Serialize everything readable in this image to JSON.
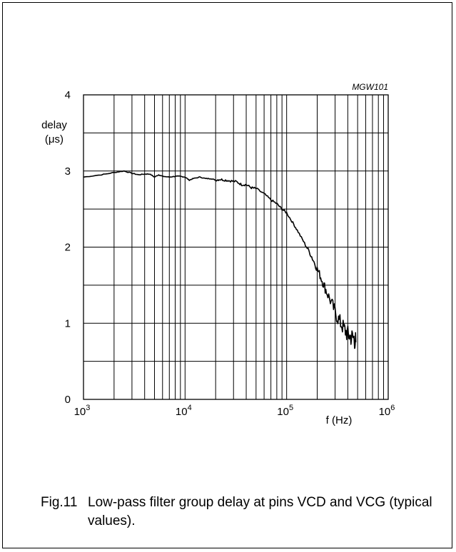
{
  "chart_data": {
    "type": "line",
    "code": "MGW101",
    "ylabel_lines": [
      "delay",
      "(μs)"
    ],
    "xlabel": "f (Hz)",
    "x_scale": "log",
    "xlim": [
      1000,
      1000000
    ],
    "ylim": [
      0,
      4
    ],
    "grid": true,
    "x_tick_labels": [
      {
        "value": 1000,
        "base": "10",
        "exp": "3"
      },
      {
        "value": 10000,
        "base": "10",
        "exp": "4"
      },
      {
        "value": 100000,
        "base": "10",
        "exp": "5"
      },
      {
        "value": 1000000,
        "base": "10",
        "exp": "6"
      }
    ],
    "y_ticks": [
      0,
      1,
      2,
      3,
      4
    ],
    "series": [
      {
        "x": [
          1000,
          1500,
          2000,
          2500,
          3000,
          3500,
          4000,
          4500,
          5000,
          5500,
          6000,
          7000,
          8000,
          9000,
          10000,
          11000,
          12000,
          14000,
          16000,
          18000,
          20000,
          22000,
          25000,
          28000,
          32000,
          36000,
          40000,
          45000,
          50000,
          60000,
          70000,
          80000,
          90000,
          100000,
          115000,
          130000,
          150000,
          170000,
          190000,
          210000,
          230000,
          250000,
          280000,
          310000,
          340000,
          370000,
          400000,
          430000,
          460000,
          480000
        ],
        "y": [
          2.92,
          2.95,
          2.98,
          3.0,
          2.97,
          2.95,
          2.96,
          2.96,
          2.92,
          2.95,
          2.93,
          2.92,
          2.93,
          2.93,
          2.92,
          2.88,
          2.9,
          2.92,
          2.9,
          2.9,
          2.88,
          2.89,
          2.88,
          2.87,
          2.86,
          2.82,
          2.82,
          2.78,
          2.77,
          2.7,
          2.62,
          2.57,
          2.5,
          2.45,
          2.32,
          2.2,
          2.05,
          1.92,
          1.78,
          1.65,
          1.52,
          1.4,
          1.25,
          1.1,
          1.0,
          0.92,
          0.85,
          0.82,
          0.8,
          0.75
        ]
      }
    ]
  },
  "caption": {
    "number": "Fig.11",
    "text": "Low-pass filter group delay at pins VCD and VCG (typical values)."
  }
}
